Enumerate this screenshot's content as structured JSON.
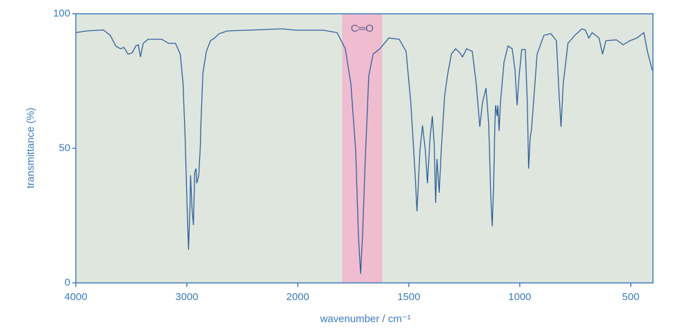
{
  "chart_data": {
    "type": "line",
    "xlabel": "wavenumber / cm⁻¹",
    "ylabel": "transmittance (%)",
    "x": [
      4000,
      3907,
      3752,
      3690,
      3640,
      3598,
      3567,
      3530,
      3492,
      3461,
      3437,
      3418,
      3393,
      3350,
      3226,
      3164,
      3102,
      3059,
      3034,
      3015,
      2997,
      2985,
      2972,
      2966,
      2954,
      2941,
      2929,
      2917,
      2910,
      2892,
      2879,
      2873,
      2855,
      2824,
      2786,
      2749,
      2712,
      2638,
      2328,
      2142,
      2019,
      1885,
      1823,
      1786,
      1761,
      1739,
      1727,
      1717,
      1708,
      1696,
      1680,
      1661,
      1630,
      1590,
      1543,
      1512,
      1491,
      1472,
      1463,
      1450,
      1438,
      1425,
      1416,
      1404,
      1394,
      1385,
      1379,
      1373,
      1363,
      1354,
      1339,
      1326,
      1308,
      1289,
      1270,
      1258,
      1239,
      1214,
      1196,
      1180,
      1168,
      1152,
      1140,
      1130,
      1124,
      1118,
      1112,
      1109,
      1102,
      1099,
      1093,
      1087,
      1071,
      1053,
      1034,
      1022,
      1012,
      1003,
      991,
      975,
      966,
      960,
      953,
      947,
      938,
      922,
      891,
      860,
      835,
      822,
      814,
      804,
      783,
      752,
      720,
      705,
      689,
      674,
      643,
      627,
      612,
      565,
      534,
      503,
      472,
      441,
      425,
      403
    ],
    "values": [
      93,
      93.6,
      94,
      92,
      88,
      87,
      87.5,
      85,
      85.5,
      88,
      88.5,
      84,
      89,
      90.5,
      90.5,
      89,
      89,
      85,
      74,
      54,
      28,
      12.3,
      28,
      40,
      28,
      21.5,
      41,
      42.5,
      37,
      40,
      50,
      59,
      78,
      86,
      90,
      91,
      92.5,
      93.6,
      94.1,
      94.4,
      93.9,
      93.9,
      93,
      87,
      74,
      49,
      18,
      3.3,
      18,
      46,
      77,
      85,
      87,
      91,
      90.5,
      86,
      67,
      41,
      26.6,
      49,
      58.5,
      49,
      37,
      54,
      62,
      51,
      29.7,
      46,
      33.5,
      49,
      69,
      77,
      85,
      87,
      85.5,
      84,
      87,
      86,
      74,
      58,
      67,
      72.4,
      59,
      31,
      21,
      36,
      59,
      66,
      62,
      66,
      56.5,
      67,
      82,
      88,
      87,
      79.5,
      66,
      77,
      86.7,
      86.7,
      67,
      42.5,
      54,
      57,
      67,
      85,
      92,
      92.6,
      90,
      69,
      58,
      74,
      89,
      92,
      94.4,
      94,
      91,
      93,
      91,
      85,
      90,
      90.3,
      88.5,
      90,
      91,
      93,
      86,
      79
    ],
    "color": "#2d5f9e",
    "xlim": [
      4000,
      400
    ],
    "xticks": [
      4000,
      3000,
      2000,
      1500,
      1000,
      500
    ],
    "ylim": [
      0,
      100
    ],
    "yticks": [
      0,
      50,
      100
    ],
    "highlight": {
      "xlim": [
        1800,
        1620
      ],
      "label": "C═O",
      "color": "#efbcd0"
    },
    "background": "#dfe6dd"
  }
}
